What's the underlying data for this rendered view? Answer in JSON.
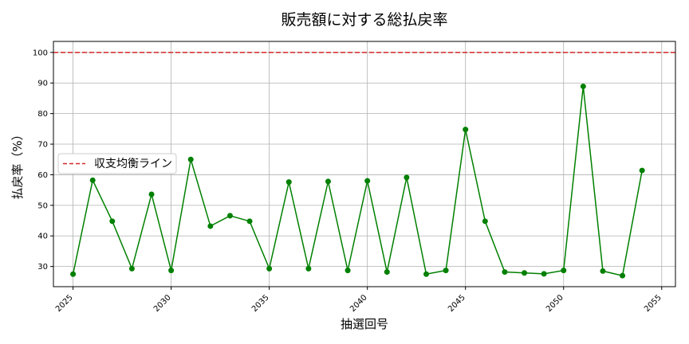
{
  "chart_data": {
    "type": "line",
    "title": "販売額に対する総払戻率",
    "xlabel": "抽選回号",
    "ylabel": "払戻率（%）",
    "xlim": [
      2024,
      2055.7
    ],
    "ylim": [
      23.4,
      103.6
    ],
    "xticks": [
      2025,
      2030,
      2035,
      2040,
      2045,
      2050,
      2055
    ],
    "yticks": [
      30,
      40,
      50,
      60,
      70,
      80,
      90,
      100
    ],
    "grid": true,
    "legend_position": "center-left",
    "series": [
      {
        "name": "",
        "color": "#008000",
        "marker": "circle",
        "x": [
          2025,
          2026,
          2027,
          2028,
          2029,
          2030,
          2031,
          2032,
          2033,
          2034,
          2035,
          2036,
          2037,
          2038,
          2039,
          2040,
          2041,
          2042,
          2043,
          2044,
          2045,
          2046,
          2047,
          2048,
          2049,
          2050,
          2051,
          2052,
          2053,
          2054
        ],
        "y": [
          27.5,
          58.2,
          44.8,
          29.3,
          53.6,
          28.7,
          65.0,
          43.2,
          46.6,
          44.8,
          29.3,
          57.6,
          29.3,
          57.8,
          28.7,
          58.0,
          28.2,
          59.1,
          27.5,
          28.7,
          74.8,
          44.8,
          28.2,
          27.9,
          27.6,
          28.7,
          88.9,
          28.5,
          27.0,
          61.4
        ]
      }
    ],
    "reference_lines": [
      {
        "name": "収支均衡ライン",
        "y": 100,
        "color": "#d62728",
        "style": "dashed"
      }
    ]
  }
}
